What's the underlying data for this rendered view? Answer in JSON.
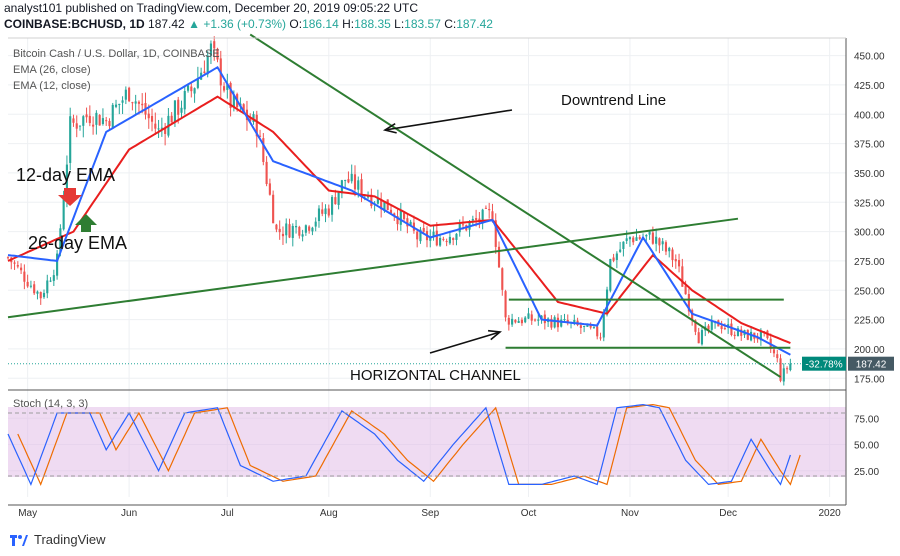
{
  "header": {
    "line1": "analyst101 published on TradingView.com, December 20, 2019 09:05:22 UTC",
    "symbol": "COINBASE:BCHUSD, 1D",
    "last": "187.42",
    "change": "+1.36 (+0.73%)",
    "o_label": "O:",
    "o": "186.14",
    "h_label": "H:",
    "h": "188.35",
    "l_label": "L:",
    "l": "183.57",
    "c_label": "C:",
    "c": "187.42"
  },
  "legend": {
    "title": "Bitcoin Cash / U.S. Dollar, 1D, COINBASE",
    "ema26": "EMA (26, close)",
    "ema12": "EMA (12, close)",
    "stoch": "Stoch (14, 3, 3)"
  },
  "annotations": {
    "downtrend": "Downtrend Line",
    "ema12": "12-day EMA",
    "ema26": "26-day EMA",
    "channel": "HORIZONTAL CHANNEL"
  },
  "price_tags": {
    "pct": "-32.78%",
    "last": "187.42"
  },
  "branding": "TradingView",
  "colors": {
    "up": "#26a69a",
    "down": "#ef5350",
    "ema26": "#e91e1e",
    "ema12": "#2962ff",
    "trendline": "#2e7d32",
    "stoch_k": "#2962ff",
    "stoch_d": "#ef6c00",
    "stoch_band": "#e1bee7",
    "pct_tag": "#00897b",
    "last_tag": "#455a64"
  },
  "chart_data": [
    {
      "type": "candlestick",
      "title": "Bitcoin Cash / U.S. Dollar, 1D, COINBASE",
      "ylim": [
        165,
        465
      ],
      "y_ticks": [
        175,
        200,
        225,
        250,
        275,
        300,
        325,
        350,
        375,
        400,
        425,
        450
      ],
      "x_ticks": [
        "May",
        "Jun",
        "Jul",
        "Aug",
        "Sep",
        "Oct",
        "Nov",
        "Dec",
        "2020"
      ],
      "x_tick_dates": [
        "2019-05-01",
        "2019-06-01",
        "2019-07-01",
        "2019-08-01",
        "2019-09-01",
        "2019-10-01",
        "2019-11-01",
        "2019-12-01",
        "2020-01-01"
      ],
      "date_range": [
        "2019-04-25",
        "2019-12-20"
      ],
      "price_anchors": [
        {
          "date": "2019-04-25",
          "close": 278
        },
        {
          "date": "2019-05-05",
          "close": 245
        },
        {
          "date": "2019-05-10",
          "close": 275
        },
        {
          "date": "2019-05-14",
          "close": 390
        },
        {
          "date": "2019-05-20",
          "close": 400
        },
        {
          "date": "2019-05-25",
          "close": 395
        },
        {
          "date": "2019-06-01",
          "close": 420
        },
        {
          "date": "2019-06-10",
          "close": 385
        },
        {
          "date": "2019-06-20",
          "close": 420
        },
        {
          "date": "2019-06-26",
          "close": 455
        },
        {
          "date": "2019-07-02",
          "close": 410
        },
        {
          "date": "2019-07-10",
          "close": 390
        },
        {
          "date": "2019-07-16",
          "close": 300
        },
        {
          "date": "2019-07-25",
          "close": 305
        },
        {
          "date": "2019-08-01",
          "close": 320
        },
        {
          "date": "2019-08-06",
          "close": 345
        },
        {
          "date": "2019-08-14",
          "close": 330
        },
        {
          "date": "2019-08-20",
          "close": 320
        },
        {
          "date": "2019-08-28",
          "close": 295
        },
        {
          "date": "2019-09-05",
          "close": 295
        },
        {
          "date": "2019-09-12",
          "close": 305
        },
        {
          "date": "2019-09-20",
          "close": 315
        },
        {
          "date": "2019-09-24",
          "close": 225
        },
        {
          "date": "2019-10-05",
          "close": 225
        },
        {
          "date": "2019-10-15",
          "close": 220
        },
        {
          "date": "2019-10-23",
          "close": 212
        },
        {
          "date": "2019-10-26",
          "close": 275
        },
        {
          "date": "2019-11-01",
          "close": 295
        },
        {
          "date": "2019-11-08",
          "close": 295
        },
        {
          "date": "2019-11-15",
          "close": 275
        },
        {
          "date": "2019-11-22",
          "close": 210
        },
        {
          "date": "2019-11-28",
          "close": 222
        },
        {
          "date": "2019-12-05",
          "close": 212
        },
        {
          "date": "2019-12-12",
          "close": 210
        },
        {
          "date": "2019-12-16",
          "close": 190
        },
        {
          "date": "2019-12-17",
          "close": 176
        },
        {
          "date": "2019-12-20",
          "close": 187.42
        }
      ],
      "ema26_anchors": [
        {
          "date": "2019-04-25",
          "value": 275
        },
        {
          "date": "2019-05-15",
          "value": 300
        },
        {
          "date": "2019-06-01",
          "value": 370
        },
        {
          "date": "2019-06-28",
          "value": 415
        },
        {
          "date": "2019-07-15",
          "value": 385
        },
        {
          "date": "2019-08-01",
          "value": 335
        },
        {
          "date": "2019-08-15",
          "value": 330
        },
        {
          "date": "2019-09-01",
          "value": 305
        },
        {
          "date": "2019-09-20",
          "value": 310
        },
        {
          "date": "2019-10-10",
          "value": 240
        },
        {
          "date": "2019-10-25",
          "value": 230
        },
        {
          "date": "2019-11-08",
          "value": 280
        },
        {
          "date": "2019-11-20",
          "value": 250
        },
        {
          "date": "2019-12-05",
          "value": 222
        },
        {
          "date": "2019-12-20",
          "value": 205
        }
      ],
      "ema12_anchors": [
        {
          "date": "2019-04-25",
          "value": 280
        },
        {
          "date": "2019-05-10",
          "value": 275
        },
        {
          "date": "2019-05-25",
          "value": 385
        },
        {
          "date": "2019-06-28",
          "value": 440
        },
        {
          "date": "2019-07-15",
          "value": 360
        },
        {
          "date": "2019-08-08",
          "value": 335
        },
        {
          "date": "2019-09-01",
          "value": 295
        },
        {
          "date": "2019-09-20",
          "value": 310
        },
        {
          "date": "2019-10-05",
          "value": 225
        },
        {
          "date": "2019-10-22",
          "value": 220
        },
        {
          "date": "2019-11-05",
          "value": 295
        },
        {
          "date": "2019-11-20",
          "value": 230
        },
        {
          "date": "2019-12-10",
          "value": 210
        },
        {
          "date": "2019-12-20",
          "value": 195
        }
      ],
      "trendlines": [
        {
          "name": "Downtrend Line",
          "from": {
            "date": "2019-07-08",
            "value": 468
          },
          "to": {
            "date": "2019-12-17",
            "value": 176
          }
        },
        {
          "name": "rising support",
          "from": {
            "date": "2019-04-25",
            "value": 227
          },
          "to": {
            "date": "2019-12-04",
            "value": 311
          }
        },
        {
          "name": "channel top",
          "from": {
            "date": "2019-09-25",
            "value": 242
          },
          "to": {
            "date": "2019-12-18",
            "value": 242
          }
        },
        {
          "name": "channel bottom",
          "from": {
            "date": "2019-09-24",
            "value": 201
          },
          "to": {
            "date": "2019-12-20",
            "value": 201
          }
        }
      ],
      "last_price": 187.42,
      "pct_change": "-32.78%"
    },
    {
      "type": "line",
      "title": "Stoch (14, 3, 3)",
      "ylim": [
        0,
        100
      ],
      "y_ticks": [
        25,
        50,
        75
      ],
      "bands": [
        20,
        80
      ],
      "k_anchors": [
        {
          "date": "2019-04-25",
          "value": 60
        },
        {
          "date": "2019-05-02",
          "value": 12
        },
        {
          "date": "2019-05-10",
          "value": 80
        },
        {
          "date": "2019-05-20",
          "value": 80
        },
        {
          "date": "2019-05-25",
          "value": 45
        },
        {
          "date": "2019-06-01",
          "value": 80
        },
        {
          "date": "2019-06-10",
          "value": 25
        },
        {
          "date": "2019-06-18",
          "value": 80
        },
        {
          "date": "2019-06-28",
          "value": 85
        },
        {
          "date": "2019-07-05",
          "value": 30
        },
        {
          "date": "2019-07-15",
          "value": 15
        },
        {
          "date": "2019-07-25",
          "value": 20
        },
        {
          "date": "2019-08-05",
          "value": 82
        },
        {
          "date": "2019-08-15",
          "value": 60
        },
        {
          "date": "2019-08-22",
          "value": 35
        },
        {
          "date": "2019-08-30",
          "value": 15
        },
        {
          "date": "2019-09-08",
          "value": 50
        },
        {
          "date": "2019-09-18",
          "value": 85
        },
        {
          "date": "2019-09-25",
          "value": 12
        },
        {
          "date": "2019-10-05",
          "value": 12
        },
        {
          "date": "2019-10-15",
          "value": 20
        },
        {
          "date": "2019-10-22",
          "value": 12
        },
        {
          "date": "2019-10-28",
          "value": 85
        },
        {
          "date": "2019-11-05",
          "value": 88
        },
        {
          "date": "2019-11-10",
          "value": 85
        },
        {
          "date": "2019-11-18",
          "value": 35
        },
        {
          "date": "2019-11-25",
          "value": 12
        },
        {
          "date": "2019-12-02",
          "value": 15
        },
        {
          "date": "2019-12-08",
          "value": 55
        },
        {
          "date": "2019-12-14",
          "value": 25
        },
        {
          "date": "2019-12-17",
          "value": 12
        },
        {
          "date": "2019-12-20",
          "value": 40
        }
      ]
    }
  ]
}
